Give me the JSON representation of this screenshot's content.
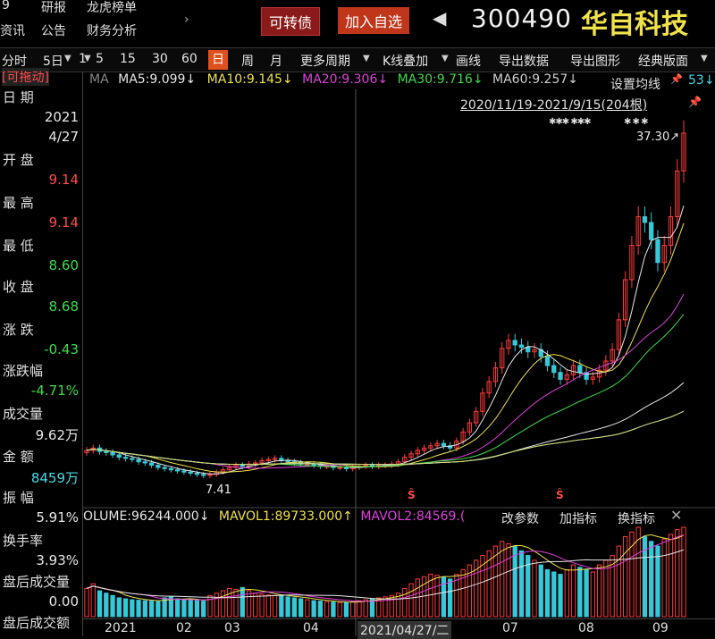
{
  "nav": {
    "row1": [
      "9",
      "研报",
      "龙虎榜单"
    ],
    "row2": [
      "资讯",
      "公告",
      "财务分析"
    ]
  },
  "header": {
    "convertible_btn": "可转债",
    "add_watch_btn": "加入自选",
    "code": "300490",
    "name": "华自科技",
    "prev_icon": "triangle-left-icon"
  },
  "toolbar": {
    "items": [
      "分时",
      "5日",
      "1",
      "5",
      "15",
      "30",
      "60",
      "日",
      "周",
      "月",
      "更多周期",
      "K线叠加",
      "画线",
      "导出数据",
      "导出图形",
      "经典版面"
    ],
    "active": "日",
    "set_ma": "设置均线"
  },
  "ma": {
    "label": "MA",
    "ma5": "MA5:9.099↓",
    "ma10": "MA10:9.145↓",
    "ma20": "MA20:9.306↓",
    "ma30": "MA30:9.716↓",
    "ma60": "MA60:9.257↓",
    "tail": "53↓",
    "colors": {
      "ma5": "#e8e8e8",
      "ma10": "#f0e24a",
      "ma20": "#e040e0",
      "ma30": "#3ddc4a",
      "ma60": "#e8e8e8",
      "ma120": "#4ad6e6",
      "ma250": "#d8d870"
    }
  },
  "range_text": "2020/11/19-2021/9/15(204根)",
  "price_marks": {
    "high": "37.30↗",
    "low": "7.41"
  },
  "info": {
    "draggable": "[可拖动]",
    "date_label": "日 期",
    "year": "2021",
    "monthday": "4/27",
    "open_label": "开 盘",
    "open": "9.14",
    "high_label": "最 高",
    "high": "9.14",
    "low_label": "最 低",
    "low": "8.60",
    "close_label": "收 盘",
    "close": "8.68",
    "change_label": "涨 跌",
    "change": "-0.43",
    "pct_label": "涨跌幅",
    "pct": "-4.71%",
    "vol_label": "成交量",
    "vol": "9.62万",
    "amount_label": "金 额",
    "amount": "8459万",
    "amp_label": "振 幅",
    "amp": "5.91%",
    "turnover_label": "换手率",
    "turnover": "3.93%",
    "after_vol_label": "盘后成交量",
    "after_vol": "0.00",
    "after_amt_label": "盘后成交额"
  },
  "volume": {
    "volume": "OLUME:96244.000↓",
    "mavol1": "MAVOL1:89733.000↑",
    "mavol2": "MAVOL2:84569.(",
    "modify": "改参数",
    "add_ind": "加指标",
    "switch_ind": "换指标",
    "close_icon": "close-icon"
  },
  "xaxis": {
    "labels": [
      "2021",
      "02",
      "03",
      "04",
      "2021/04/27/二",
      "07",
      "08",
      "09"
    ]
  },
  "chart_data": {
    "type": "candlestick",
    "range": "2020/11/19-2021/9/15",
    "bars": 204,
    "ylim": [
      6,
      38
    ],
    "closes": [
      9.6,
      9.8,
      9.5,
      9.4,
      9.2,
      9.0,
      8.9,
      8.8,
      8.6,
      8.5,
      8.3,
      8.1,
      8.0,
      7.9,
      7.8,
      7.7,
      7.6,
      7.5,
      7.4,
      7.5,
      7.7,
      7.9,
      8.1,
      8.3,
      8.2,
      8.4,
      8.5,
      8.7,
      8.8,
      8.9,
      8.7,
      8.6,
      8.5,
      8.4,
      8.4,
      8.3,
      8.2,
      8.2,
      8.1,
      8.1,
      8.0,
      8.1,
      8.2,
      8.3,
      8.2,
      8.3,
      8.3,
      8.4,
      8.6,
      9.0,
      9.3,
      9.6,
      9.8,
      10.0,
      10.2,
      10.0,
      9.8,
      10.4,
      11.2,
      12.0,
      13.0,
      14.6,
      15.6,
      16.8,
      18.5,
      19.2,
      18.8,
      18.6,
      18.2,
      18.4,
      17.8,
      17.0,
      16.4,
      15.8,
      16.2,
      17.0,
      16.4,
      15.8,
      16.0,
      16.6,
      17.4,
      18.4,
      21.0,
      24.5,
      27.5,
      30.0,
      29.5,
      28.0,
      26.0,
      27.5,
      30.0,
      34.0,
      37.3
    ],
    "volume": [
      60,
      70,
      55,
      50,
      45,
      40,
      38,
      36,
      35,
      34,
      33,
      32,
      40,
      42,
      38,
      36,
      35,
      34,
      33,
      45,
      50,
      55,
      60,
      58,
      62,
      55,
      50,
      48,
      46,
      45,
      44,
      42,
      40,
      38,
      36,
      34,
      33,
      32,
      31,
      30,
      30,
      32,
      34,
      36,
      38,
      40,
      42,
      45,
      50,
      60,
      70,
      80,
      85,
      90,
      88,
      84,
      80,
      90,
      100,
      110,
      120,
      130,
      140,
      150,
      160,
      155,
      150,
      140,
      130,
      120,
      110,
      100,
      95,
      90,
      100,
      110,
      105,
      100,
      95,
      110,
      120,
      130,
      150,
      170,
      180,
      190,
      170,
      160,
      150,
      165,
      175,
      185,
      190
    ]
  }
}
